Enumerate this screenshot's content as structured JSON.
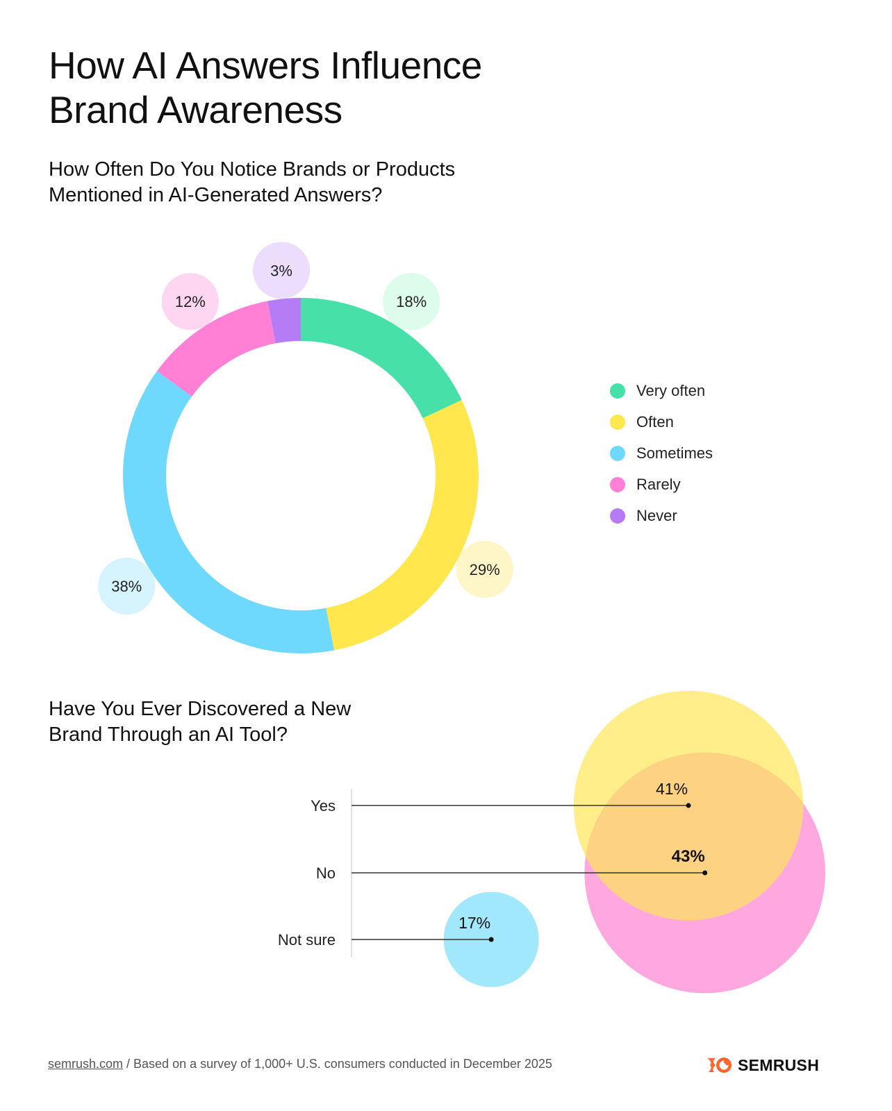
{
  "title": "How AI Answers Influence Brand Awareness",
  "footer": {
    "link": "semrush.com",
    "note": " / Based on a survey of 1,000+ U.S. consumers conducted in December 2025"
  },
  "logo": {
    "text": "SEMRUSH",
    "color": "#FF642D"
  },
  "chart_data": [
    {
      "type": "pie",
      "donut": true,
      "title": "How Often Do You Notice Brands or Products Mentioned in AI-Generated Answers?",
      "legend_position": "right",
      "categories": [
        "Very often",
        "Often",
        "Sometimes",
        "Rarely",
        "Never"
      ],
      "values": [
        18,
        29,
        38,
        12,
        3
      ],
      "labels": [
        "18%",
        "29%",
        "38%",
        "12%",
        "3%"
      ],
      "colors": [
        "#47E0A8",
        "#FFE74D",
        "#6FD9FD",
        "#FF80D4",
        "#B57CF5"
      ],
      "label_bg_colors": [
        "#DDFCEB",
        "#FFF6C8",
        "#D5F4FE",
        "#FFD6F2",
        "#EBDDFB"
      ]
    },
    {
      "type": "bubble",
      "title": "Have You Ever Discovered a New Brand Through an AI Tool?",
      "categories": [
        "Yes",
        "No",
        "Not sure"
      ],
      "values": [
        41,
        43,
        17
      ],
      "labels": [
        "41%",
        "43%",
        "17%"
      ],
      "highlight": "No",
      "colors": [
        "#FFEE8A",
        "#FFA8E0",
        "#A2E8FD"
      ],
      "overlap_color": "#FED283"
    }
  ]
}
